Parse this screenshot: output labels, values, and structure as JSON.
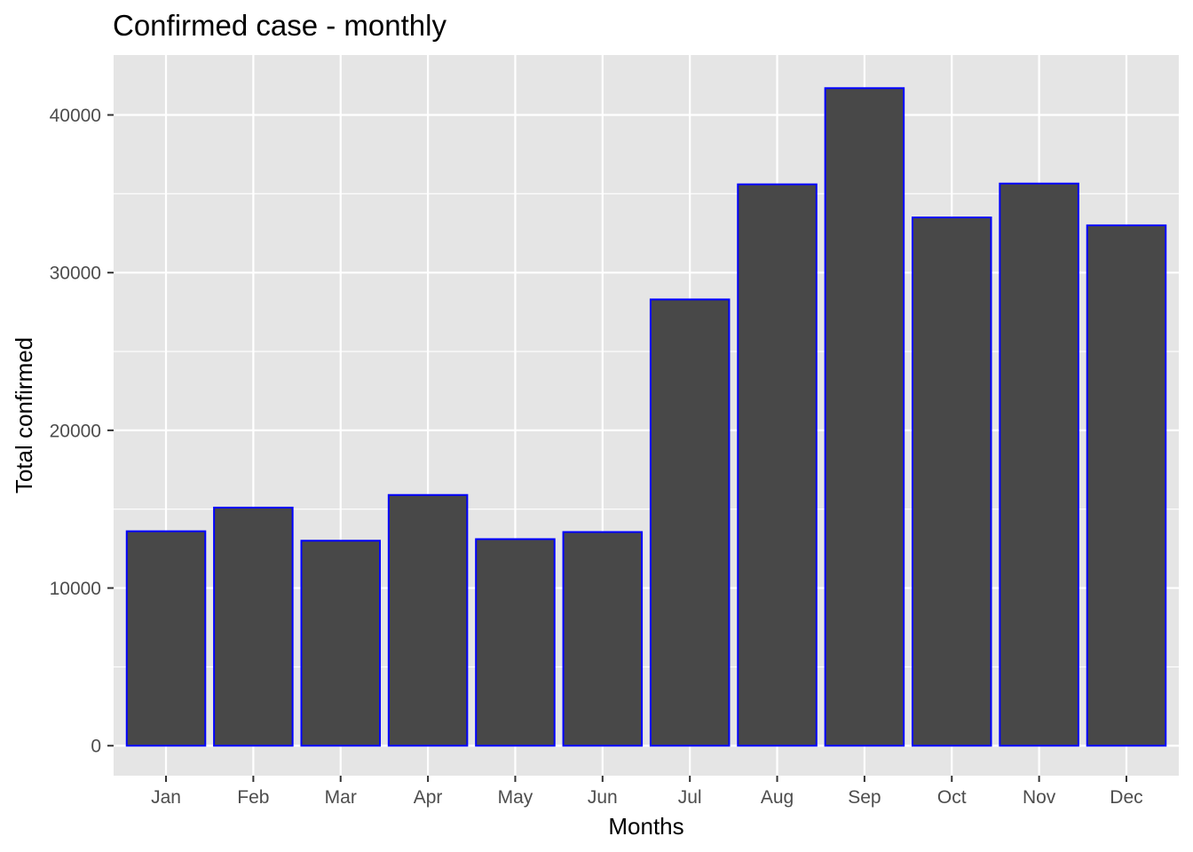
{
  "chart_data": {
    "type": "bar",
    "title": "Confirmed case - monthly",
    "xlabel": "Months",
    "ylabel": "Total confirmed",
    "categories": [
      "Jan",
      "Feb",
      "Mar",
      "Apr",
      "May",
      "Jun",
      "Jul",
      "Aug",
      "Sep",
      "Oct",
      "Nov",
      "Dec"
    ],
    "values": [
      13600,
      15100,
      13000,
      15900,
      13100,
      13550,
      28300,
      35600,
      41700,
      33500,
      35650,
      33000
    ],
    "ylim": [
      -1900,
      43800
    ],
    "yticks": [
      0,
      10000,
      20000,
      30000,
      40000
    ],
    "ytick_labels": [
      "0",
      "10000",
      "20000",
      "30000",
      "40000"
    ],
    "grid": true,
    "colors": {
      "panel_background": "#e5e5e5",
      "grid": "#ffffff",
      "bar_fill": "#484848",
      "bar_outline": "#0000ff"
    }
  }
}
